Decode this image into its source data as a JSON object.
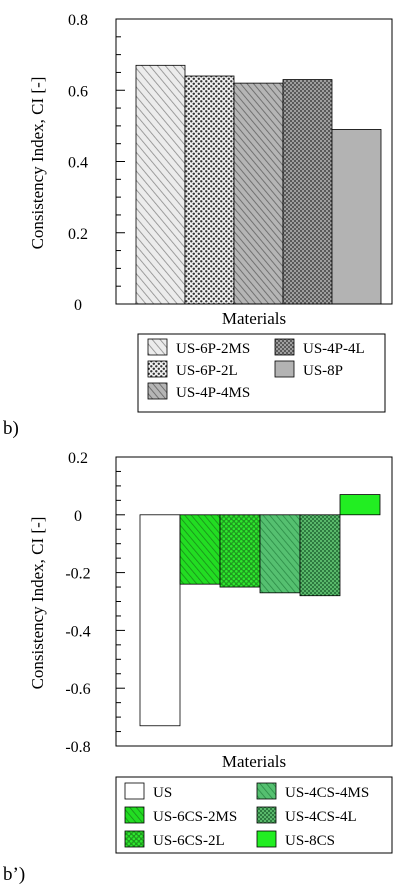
{
  "chart_data": [
    {
      "type": "bar",
      "panel_label": "b)",
      "xlabel": "Materials",
      "ylabel": "Consistency Index, CI [-]",
      "ylim": [
        0,
        0.8
      ],
      "yticks": [
        0,
        0.2,
        0.4,
        0.6,
        0.8
      ],
      "ytick_labels": [
        "0",
        "0.2",
        "0.4",
        "0.6",
        "0.8"
      ],
      "legend_placement": "bottom",
      "series": [
        {
          "name": "US-6P-2MS",
          "value": 0.67,
          "pattern": "hatch",
          "color": "#d9d9d9"
        },
        {
          "name": "US-6P-2L",
          "value": 0.64,
          "pattern": "dots",
          "color": "#e6e6e6"
        },
        {
          "name": "US-4P-4MS",
          "value": 0.62,
          "pattern": "hatch",
          "color": "#9c9c9c"
        },
        {
          "name": "US-4P-4L",
          "value": 0.63,
          "pattern": "dots",
          "color": "#8a8a8a"
        },
        {
          "name": "US-8P",
          "value": 0.49,
          "pattern": "solid",
          "color": "#b3b3b3"
        }
      ]
    },
    {
      "type": "bar",
      "panel_label": "b’)",
      "xlabel": "Materials",
      "ylabel": "Consistency Index, CI [-]",
      "ylim": [
        -0.8,
        0.2
      ],
      "yticks": [
        -0.8,
        -0.6,
        -0.4,
        -0.2,
        0,
        0.2
      ],
      "ytick_labels": [
        "-0.8",
        "-0.6",
        "-0.4",
        "-0.2",
        "0",
        "0.2"
      ],
      "legend_placement": "bottom",
      "series": [
        {
          "name": "US",
          "value": -0.73,
          "pattern": "solid",
          "color": "#ffffff"
        },
        {
          "name": "US-6CS-2MS",
          "value": -0.24,
          "pattern": "hatch",
          "color": "#22cc22"
        },
        {
          "name": "US-6CS-2L",
          "value": -0.25,
          "pattern": "dots",
          "color": "#22bb22"
        },
        {
          "name": "US-4CS-4MS",
          "value": -0.27,
          "pattern": "hatch",
          "color": "#44bb55"
        },
        {
          "name": "US-4CS-4L",
          "value": -0.28,
          "pattern": "dots",
          "color": "#3aa050"
        },
        {
          "name": "US-8CS",
          "value": 0.07,
          "pattern": "solid",
          "color": "#22ee22"
        }
      ]
    }
  ]
}
